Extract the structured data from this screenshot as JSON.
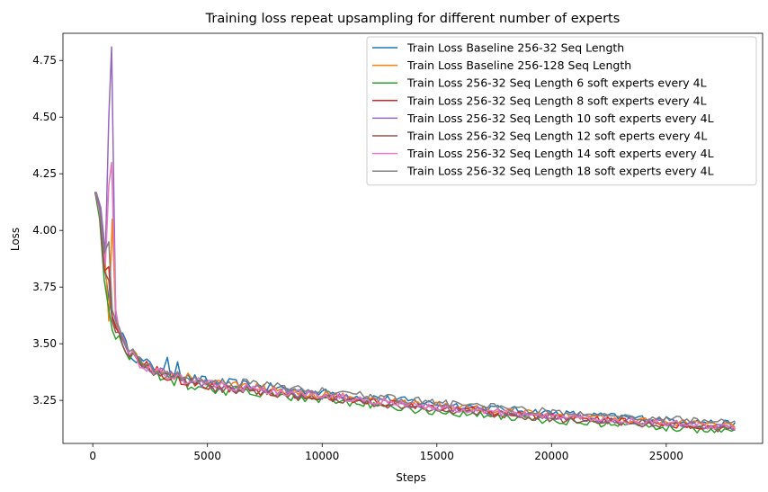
{
  "chart_data": {
    "type": "line",
    "title": "Training loss repeat upsampling for different number of experts",
    "xlabel": "Steps",
    "ylabel": "Loss",
    "xlim": [
      -1300,
      29200
    ],
    "ylim": [
      3.06,
      4.87
    ],
    "xticks": [
      0,
      5000,
      10000,
      15000,
      20000,
      25000
    ],
    "yticks": [
      3.25,
      3.5,
      3.75,
      4.0,
      4.25,
      4.5,
      4.75
    ],
    "ytick_labels": [
      "3.25",
      "3.50",
      "3.75",
      "4.00",
      "4.25",
      "4.50",
      "4.75"
    ],
    "grid": false,
    "legend_position": "top-right",
    "x_end": 28000,
    "tail_points": [
      [
        1000,
        3.6
      ],
      [
        1500,
        3.47
      ],
      [
        2000,
        3.42
      ],
      [
        3000,
        3.37
      ],
      [
        4000,
        3.34
      ],
      [
        5000,
        3.32
      ],
      [
        7000,
        3.3
      ],
      [
        10000,
        3.27
      ],
      [
        15000,
        3.22
      ],
      [
        20000,
        3.18
      ],
      [
        25000,
        3.15
      ],
      [
        28000,
        3.13
      ]
    ],
    "series": [
      {
        "name": "Train Loss Baseline 256-32 Seq Length",
        "color": "#1f77b4",
        "start": [
          100,
          4.17
        ],
        "early": [
          [
            300,
            4.1
          ],
          [
            500,
            3.85
          ],
          [
            700,
            3.7
          ],
          [
            850,
            3.62
          ],
          [
            1000,
            3.58
          ]
        ],
        "offset": 0.015,
        "spikes": [
          [
            3300,
            3.44
          ],
          [
            3700,
            3.42
          ]
        ]
      },
      {
        "name": "Train Loss Baseline 256-128 Seq Length",
        "color": "#ff7f0e",
        "start": [
          150,
          4.16
        ],
        "early": [
          [
            350,
            4.08
          ],
          [
            550,
            3.85
          ],
          [
            700,
            3.6
          ],
          [
            850,
            4.05
          ],
          [
            1000,
            3.6
          ]
        ],
        "offset": 0.005,
        "spikes": [
          [
            4100,
            3.37
          ]
        ]
      },
      {
        "name": "Train Loss 256-32 Seq Length 6 soft experts every 4L",
        "color": "#2ca02c",
        "start": [
          100,
          4.17
        ],
        "early": [
          [
            300,
            4.05
          ],
          [
            500,
            3.78
          ],
          [
            700,
            3.65
          ],
          [
            850,
            3.56
          ],
          [
            1000,
            3.52
          ]
        ],
        "offset": -0.02,
        "spikes": []
      },
      {
        "name": "Train Loss 256-32 Seq Length 8 soft experts every 4L",
        "color": "#d62728",
        "start": [
          100,
          4.17
        ],
        "early": [
          [
            300,
            4.08
          ],
          [
            500,
            3.82
          ],
          [
            700,
            3.84
          ],
          [
            850,
            3.62
          ],
          [
            1000,
            3.57
          ]
        ],
        "offset": -0.005,
        "spikes": []
      },
      {
        "name": "Train Loss 256-32 Seq Length 10 soft experts every 4L",
        "color": "#9467bd",
        "start": [
          150,
          4.17
        ],
        "early": [
          [
            350,
            4.1
          ],
          [
            550,
            3.9
          ],
          [
            700,
            4.5
          ],
          [
            820,
            4.81
          ],
          [
            1000,
            3.62
          ]
        ],
        "offset": 0.0,
        "spikes": []
      },
      {
        "name": "Train Loss 256-32 Seq Length 12 soft eperts every 4L",
        "color": "#8c564b",
        "start": [
          100,
          4.17
        ],
        "early": [
          [
            300,
            4.08
          ],
          [
            500,
            3.82
          ],
          [
            700,
            3.78
          ],
          [
            850,
            3.6
          ],
          [
            1000,
            3.55
          ]
        ],
        "offset": -0.01,
        "spikes": []
      },
      {
        "name": "Train Loss 256-32 Seq Length 14 soft experts every 4L",
        "color": "#e377c2",
        "start": [
          150,
          4.16
        ],
        "early": [
          [
            350,
            4.05
          ],
          [
            550,
            3.85
          ],
          [
            700,
            4.2
          ],
          [
            820,
            4.3
          ],
          [
            1000,
            3.65
          ]
        ],
        "offset": 0.0,
        "spikes": []
      },
      {
        "name": "Train Loss 256-32 Seq Length 18 soft experts every 4L",
        "color": "#7f7f7f",
        "start": [
          100,
          4.17
        ],
        "early": [
          [
            300,
            4.1
          ],
          [
            500,
            3.9
          ],
          [
            700,
            3.95
          ],
          [
            850,
            3.65
          ],
          [
            1000,
            3.6
          ]
        ],
        "offset": 0.02,
        "spikes": []
      }
    ]
  }
}
